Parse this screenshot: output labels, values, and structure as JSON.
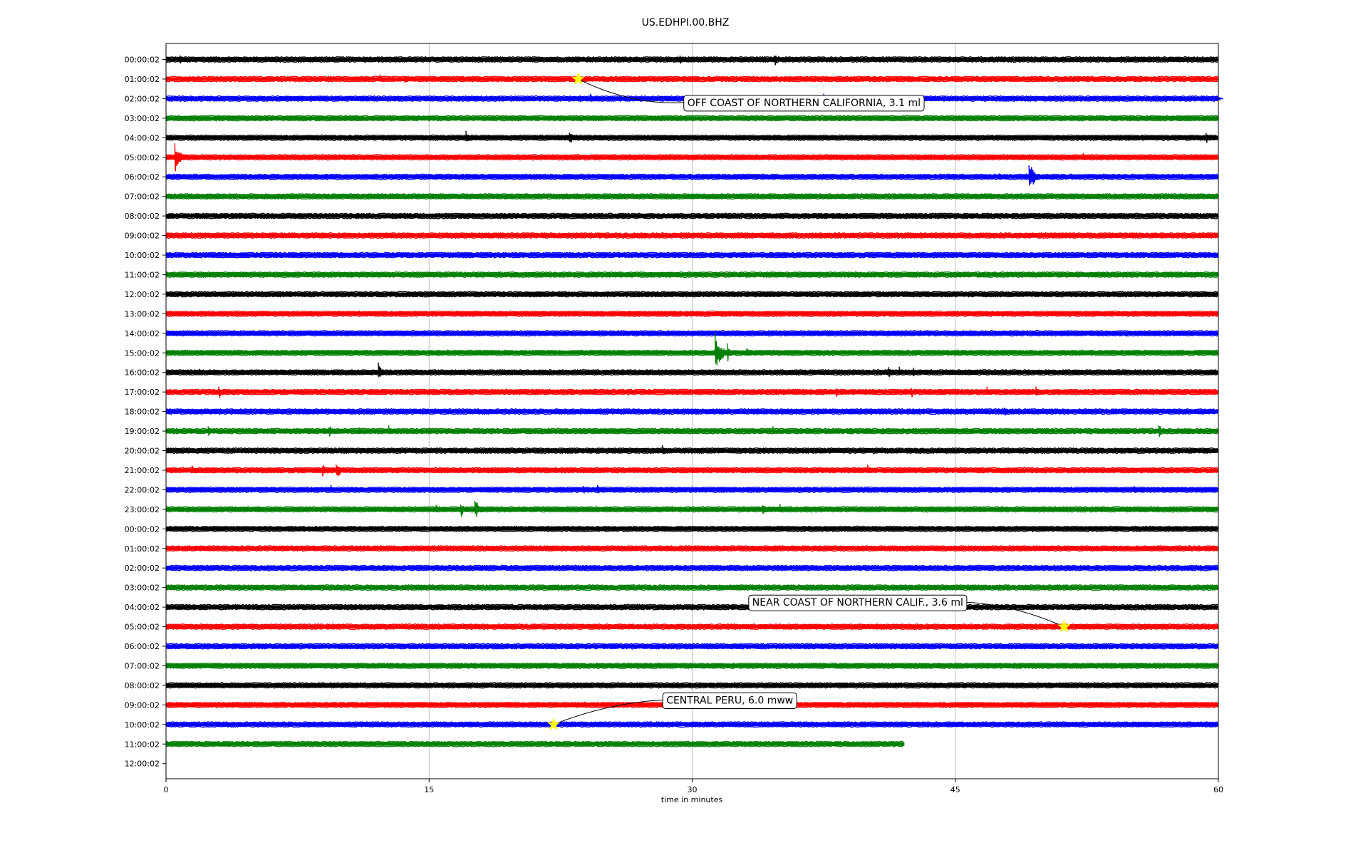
{
  "chart_data": {
    "type": "line",
    "title": "US.EDHPI.00.BHZ",
    "xlabel": "time in minutes",
    "xlim": [
      0,
      60
    ],
    "x_ticks": [
      "0",
      "15",
      "30",
      "45",
      "60"
    ],
    "y_tick_labels": [
      "00:00:02",
      "01:00:02",
      "02:00:02",
      "03:00:02",
      "04:00:02",
      "05:00:02",
      "06:00:02",
      "07:00:02",
      "08:00:02",
      "09:00:02",
      "10:00:02",
      "11:00:02",
      "12:00:02",
      "13:00:02",
      "14:00:02",
      "15:00:02",
      "16:00:02",
      "17:00:02",
      "18:00:02",
      "19:00:02",
      "20:00:02",
      "21:00:02",
      "22:00:02",
      "23:00:02",
      "00:00:02",
      "01:00:02",
      "02:00:02",
      "03:00:02",
      "04:00:02",
      "05:00:02",
      "06:00:02",
      "07:00:02",
      "08:00:02",
      "09:00:02",
      "10:00:02",
      "11:00:02",
      "12:00:02"
    ],
    "grid": "vertical at x ticks",
    "trace_colors": [
      "#000000",
      "#ff0000",
      "#0000ff",
      "#008000"
    ],
    "traces": [
      {
        "row": 0,
        "end_minute": 60,
        "events": [
          [
            0.8,
            3
          ],
          [
            14.9,
            1.5
          ],
          [
            29.3,
            3
          ],
          [
            34,
            3
          ],
          [
            34.7,
            4
          ]
        ]
      },
      {
        "row": 1,
        "end_minute": 60,
        "events": [
          [
            12.2,
            2.5
          ],
          [
            13.6,
            3
          ],
          [
            11.5,
            1.2
          ]
        ]
      },
      {
        "row": 2,
        "end_minute": 60,
        "events": [
          [
            23.6,
            3
          ],
          [
            24.2,
            2.5
          ],
          [
            34.5,
            2
          ],
          [
            37.5,
            2.5
          ],
          [
            58.5,
            1.5
          ],
          [
            59.9,
            2
          ]
        ]
      },
      {
        "row": 3,
        "end_minute": 60,
        "events": [
          [
            26.9,
            2
          ]
        ]
      },
      {
        "row": 4,
        "end_minute": 60,
        "events": [
          [
            17.1,
            4
          ],
          [
            23,
            4.5
          ],
          [
            59.3,
            3.5
          ]
        ]
      },
      {
        "row": 5,
        "end_minute": 60,
        "events": [
          [
            0.5,
            8
          ],
          [
            37.5,
            2
          ],
          [
            38.8,
            2
          ],
          [
            52.3,
            2
          ]
        ]
      },
      {
        "row": 6,
        "end_minute": 60,
        "events": [
          [
            27,
            1.2
          ],
          [
            47.5,
            2
          ],
          [
            49.2,
            9
          ]
        ]
      },
      {
        "row": 7,
        "end_minute": 60,
        "events": []
      },
      {
        "row": 8,
        "end_minute": 60,
        "events": []
      },
      {
        "row": 9,
        "end_minute": 60,
        "events": []
      },
      {
        "row": 10,
        "end_minute": 60,
        "events": []
      },
      {
        "row": 11,
        "end_minute": 60,
        "events": []
      },
      {
        "row": 12,
        "end_minute": 60,
        "events": []
      },
      {
        "row": 13,
        "end_minute": 60,
        "events": []
      },
      {
        "row": 14,
        "end_minute": 60,
        "events": []
      },
      {
        "row": 15,
        "end_minute": 60,
        "events": [
          [
            31.3,
            10
          ],
          [
            32,
            5
          ],
          [
            33.1,
            3
          ]
        ]
      },
      {
        "row": 16,
        "end_minute": 60,
        "events": [
          [
            1.9,
            2
          ],
          [
            12.1,
            5
          ],
          [
            41.2,
            3
          ],
          [
            41.8,
            3
          ],
          [
            42.6,
            2.5
          ],
          [
            48.7,
            1.5
          ]
        ]
      },
      {
        "row": 17,
        "end_minute": 60,
        "events": [
          [
            3,
            4
          ],
          [
            38.2,
            3
          ],
          [
            42.5,
            3.5
          ],
          [
            46.8,
            3
          ],
          [
            49.6,
            3
          ]
        ]
      },
      {
        "row": 18,
        "end_minute": 60,
        "events": [
          [
            47.8,
            3
          ]
        ]
      },
      {
        "row": 19,
        "end_minute": 60,
        "events": [
          [
            0.6,
            2
          ],
          [
            2.4,
            3
          ],
          [
            9.3,
            3.5
          ],
          [
            11,
            3
          ],
          [
            12.7,
            3
          ],
          [
            34.6,
            2.5
          ],
          [
            39,
            2.5
          ],
          [
            56.6,
            4
          ]
        ]
      },
      {
        "row": 20,
        "end_minute": 60,
        "events": [
          [
            28.3,
            3
          ]
        ]
      },
      {
        "row": 21,
        "end_minute": 60,
        "events": [
          [
            1,
            2
          ],
          [
            1.5,
            3
          ],
          [
            8.9,
            4
          ],
          [
            9.7,
            6
          ],
          [
            40,
            3
          ]
        ]
      },
      {
        "row": 22,
        "end_minute": 60,
        "events": [
          [
            9.4,
            2.5
          ],
          [
            14.4,
            2
          ],
          [
            23.8,
            3
          ],
          [
            24.6,
            3.5
          ],
          [
            50,
            2
          ],
          [
            55.2,
            2.5
          ]
        ]
      },
      {
        "row": 23,
        "end_minute": 60,
        "events": [
          [
            15.4,
            2.5
          ],
          [
            16.8,
            4.5
          ],
          [
            17.6,
            6
          ],
          [
            34,
            4
          ],
          [
            35,
            3
          ]
        ]
      },
      {
        "row": 24,
        "end_minute": 60,
        "events": []
      },
      {
        "row": 25,
        "end_minute": 60,
        "events": []
      },
      {
        "row": 26,
        "end_minute": 60,
        "events": []
      },
      {
        "row": 27,
        "end_minute": 60,
        "events": []
      },
      {
        "row": 28,
        "end_minute": 60,
        "events": []
      },
      {
        "row": 29,
        "end_minute": 60,
        "events": []
      },
      {
        "row": 30,
        "end_minute": 60,
        "events": []
      },
      {
        "row": 31,
        "end_minute": 60,
        "events": []
      },
      {
        "row": 32,
        "end_minute": 60,
        "events": []
      },
      {
        "row": 33,
        "end_minute": 60,
        "events": []
      },
      {
        "row": 34,
        "end_minute": 60,
        "events": [
          [
            33.3,
            2
          ]
        ]
      },
      {
        "row": 35,
        "end_minute": 42.1,
        "events": []
      }
    ],
    "annotations": [
      {
        "text": "OFF COAST OF NORTHERN CALIFORNIA, 3.1 ml",
        "row": 1,
        "minute": 23.5,
        "label_minute": 29.4,
        "label_row": 2.2,
        "label_anchor": "start",
        "marker_color": "#ffff00"
      },
      {
        "text": "NEAR COAST OF NORTHERN CALIF., 3.6 ml",
        "row": 29,
        "minute": 51.2,
        "label_minute": 33.1,
        "label_row": 27.75,
        "label_anchor": "start",
        "marker_color": "#ffff00"
      },
      {
        "text": "CENTRAL PERU, 6.0 mww",
        "row": 34,
        "minute": 22.1,
        "label_minute": 28.2,
        "label_row": 32.75,
        "label_anchor": "start",
        "marker_color": "#ffff00"
      }
    ]
  }
}
